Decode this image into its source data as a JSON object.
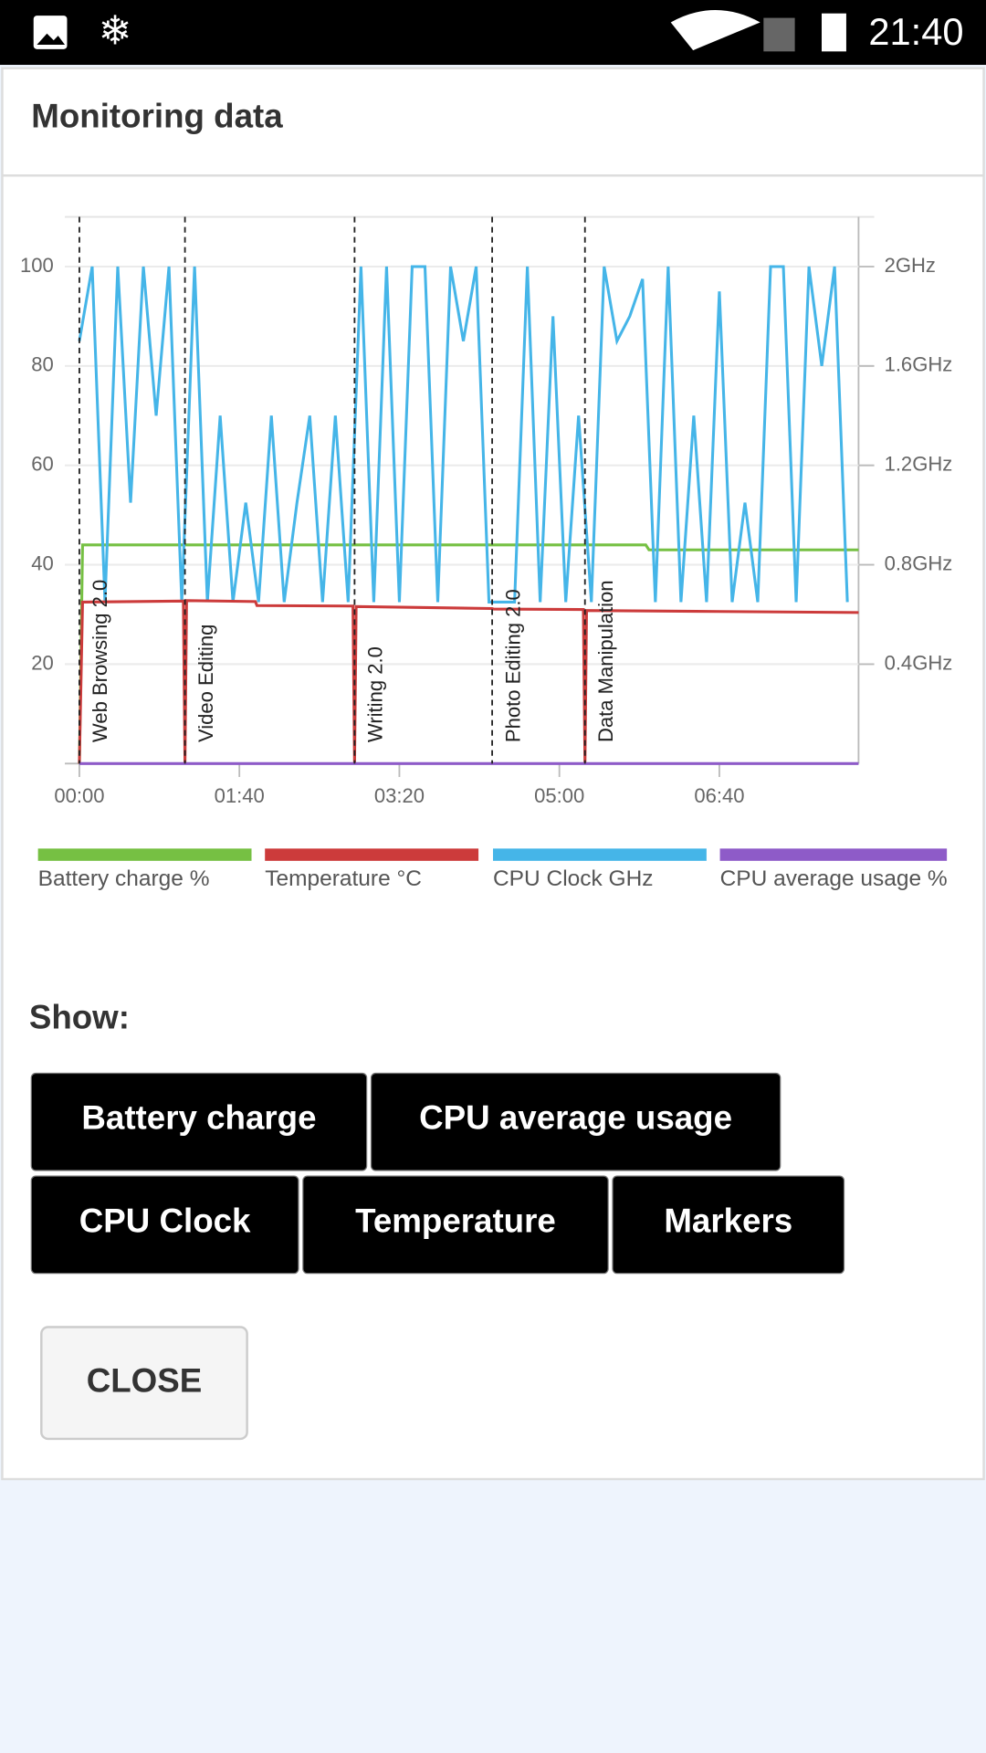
{
  "status_bar": {
    "time": "21:40"
  },
  "dialog": {
    "title": "Monitoring data"
  },
  "chart_data": {
    "type": "line",
    "xlim": [
      0,
      487
    ],
    "xticks": [
      {
        "value": 0,
        "label": "00:00"
      },
      {
        "value": 100,
        "label": "01:40"
      },
      {
        "value": 200,
        "label": "03:20"
      },
      {
        "value": 300,
        "label": "05:00"
      },
      {
        "value": 400,
        "label": "06:40"
      }
    ],
    "ylim": [
      0,
      110
    ],
    "yticks": [
      20,
      40,
      60,
      80,
      100
    ],
    "y2lim": [
      0,
      2.2
    ],
    "y2ticks": [
      {
        "value": 0.4,
        "label": "0.4GHz"
      },
      {
        "value": 0.8,
        "label": "0.8GHz"
      },
      {
        "value": 1.2,
        "label": "1.2GHz"
      },
      {
        "value": 1.6,
        "label": "1.6GHz"
      },
      {
        "value": 2,
        "label": "2GHz"
      }
    ],
    "grid": true,
    "markers": [
      {
        "x": 0,
        "label": "Web Browsing 2.0"
      },
      {
        "x": 66,
        "label": "Video Editing"
      },
      {
        "x": 172,
        "label": "Writing 2.0"
      },
      {
        "x": 258,
        "label": "Photo Editing 2.0"
      },
      {
        "x": 316,
        "label": "Data Manipulation"
      }
    ],
    "series": [
      {
        "name": "Battery charge %",
        "color": "#76c043",
        "x": [
          0,
          2,
          354,
          356,
          487
        ],
        "values": [
          0,
          44,
          44,
          43,
          43
        ]
      },
      {
        "name": "Temperature °C",
        "color": "#cc3b3b",
        "x": [
          0,
          2,
          65,
          66,
          67,
          110,
          111,
          171,
          172,
          173,
          258,
          259,
          315,
          316,
          317,
          400,
          487
        ],
        "values": [
          0,
          32.5,
          32.7,
          0,
          32.8,
          32.6,
          31.8,
          31.7,
          0,
          31.6,
          31.2,
          31.1,
          31,
          0,
          30.8,
          30.6,
          30.4
        ]
      },
      {
        "name": "CPU Clock GHz",
        "color": "#45b5e8",
        "axis": "y2",
        "x": [
          0,
          8,
          16,
          24,
          32,
          40,
          48,
          56,
          64,
          72,
          80,
          88,
          96,
          104,
          112,
          120,
          128,
          136,
          144,
          152,
          160,
          168,
          176,
          184,
          192,
          200,
          208,
          216,
          224,
          232,
          240,
          248,
          256,
          264,
          272,
          280,
          288,
          296,
          304,
          312,
          320,
          328,
          336,
          344,
          352,
          360,
          368,
          376,
          384,
          392,
          400,
          408,
          416,
          424,
          432,
          440,
          448,
          456,
          464,
          472,
          480
        ],
        "values": [
          1.7,
          2,
          0.65,
          2,
          1.05,
          2,
          1.4,
          2,
          0.65,
          2,
          0.65,
          1.4,
          0.65,
          1.05,
          0.65,
          1.4,
          0.65,
          1.05,
          1.4,
          0.65,
          1.4,
          0.65,
          2,
          0.65,
          2,
          0.65,
          2,
          2,
          0.65,
          2,
          1.7,
          2,
          0.65,
          0.65,
          0.65,
          2,
          0.65,
          1.8,
          0.65,
          1.4,
          0.65,
          2,
          1.7,
          1.8,
          1.95,
          0.65,
          2,
          0.65,
          1.4,
          0.65,
          1.9,
          0.65,
          1.05,
          0.65,
          2,
          2,
          0.65,
          2,
          1.6,
          2,
          0.65
        ]
      },
      {
        "name": "CPU average usage %",
        "color": "#8e5bc8",
        "x": [
          0,
          487
        ],
        "values": [
          0,
          0
        ]
      }
    ]
  },
  "show": {
    "label": "Show:",
    "buttons": [
      "Battery charge",
      "CPU average usage",
      "CPU Clock",
      "Temperature",
      "Markers"
    ]
  },
  "close": "CLOSE"
}
